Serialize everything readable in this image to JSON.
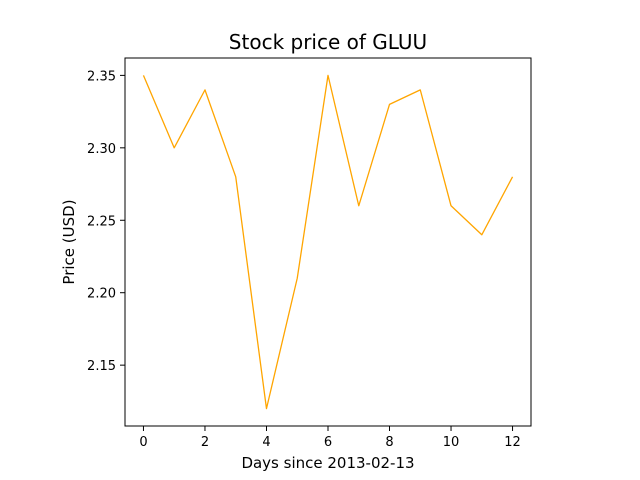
{
  "chart_data": {
    "type": "line",
    "title": "Stock price of GLUU",
    "xlabel": "Days since 2013-02-13",
    "ylabel": "Price (USD)",
    "x": [
      0,
      1,
      2,
      3,
      4,
      5,
      6,
      7,
      8,
      9,
      10,
      11,
      12
    ],
    "series": [
      {
        "values": [
          2.35,
          2.3,
          2.34,
          2.28,
          2.12,
          2.21,
          2.35,
          2.26,
          2.33,
          2.34,
          2.26,
          2.24,
          2.28
        ],
        "color": "#FFA500"
      }
    ],
    "xlim": [
      -0.6,
      12.6
    ],
    "ylim": [
      2.108,
      2.362
    ],
    "x_ticks": [
      "0",
      "2",
      "4",
      "6",
      "8",
      "10",
      "12"
    ],
    "y_ticks": [
      "2.15",
      "2.20",
      "2.25",
      "2.30",
      "2.35"
    ],
    "grid": false,
    "legend": "none"
  }
}
